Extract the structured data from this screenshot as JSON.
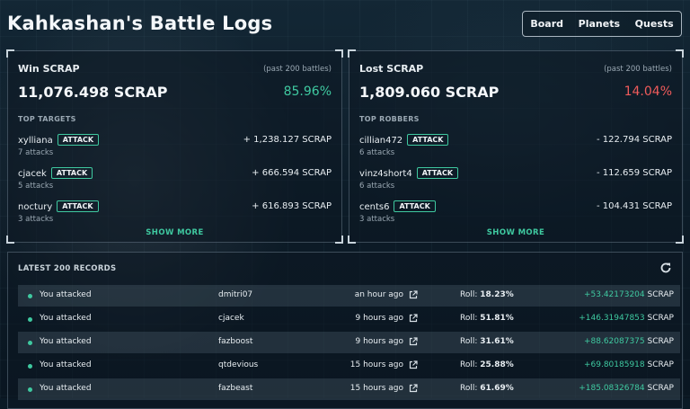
{
  "header": {
    "title": "Kahkashan's Battle Logs"
  },
  "nav": {
    "items": [
      "Board",
      "Planets",
      "Quests"
    ]
  },
  "win_panel": {
    "title": "Win SCRAP",
    "subtitle": "(past 200 battles)",
    "total": "11,076.498 SCRAP",
    "percent": "85.96%",
    "section": "TOP TARGETS",
    "badge": "ATTACK",
    "rows": [
      {
        "name": "xylliana",
        "attacks": "7 attacks",
        "amount": "+ 1,238.127 SCRAP"
      },
      {
        "name": "cjacek",
        "attacks": "5 attacks",
        "amount": "+ 666.594 SCRAP"
      },
      {
        "name": "noctury",
        "attacks": "3 attacks",
        "amount": "+ 616.893 SCRAP"
      }
    ],
    "show_more": "SHOW MORE"
  },
  "lost_panel": {
    "title": "Lost SCRAP",
    "subtitle": "(past 200 battles)",
    "total": "1,809.060 SCRAP",
    "percent": "14.04%",
    "section": "TOP ROBBERS",
    "badge": "ATTACK",
    "rows": [
      {
        "name": "cillian472",
        "attacks": "6 attacks",
        "amount": "- 122.794 SCRAP"
      },
      {
        "name": "vinz4short4",
        "attacks": "6 attacks",
        "amount": "- 112.659 SCRAP"
      },
      {
        "name": "cents6",
        "attacks": "3 attacks",
        "amount": "- 104.431 SCRAP"
      }
    ],
    "show_more": "SHOW MORE"
  },
  "records": {
    "title": "LATEST 200 RECORDS",
    "roll_label": "Roll:",
    "scrap_label": "SCRAP",
    "rows": [
      {
        "action": "You attacked",
        "opponent": "dmitri07",
        "time": "an hour ago",
        "roll": "18.23%",
        "gain": "+53.42173204"
      },
      {
        "action": "You attacked",
        "opponent": "cjacek",
        "time": "9 hours ago",
        "roll": "51.81%",
        "gain": "+146.31947853"
      },
      {
        "action": "You attacked",
        "opponent": "fazboost",
        "time": "9 hours ago",
        "roll": "31.61%",
        "gain": "+88.62087375"
      },
      {
        "action": "You attacked",
        "opponent": "qtdevious",
        "time": "15 hours ago",
        "roll": "25.88%",
        "gain": "+69.80185918"
      },
      {
        "action": "You attacked",
        "opponent": "fazbeast",
        "time": "15 hours ago",
        "roll": "61.69%",
        "gain": "+185.08326784"
      }
    ]
  },
  "icons": {
    "refresh": "refresh-icon",
    "external_link": "external-link-icon"
  },
  "colors": {
    "positive": "#3fc9a0",
    "negative": "#ef5b5b"
  }
}
